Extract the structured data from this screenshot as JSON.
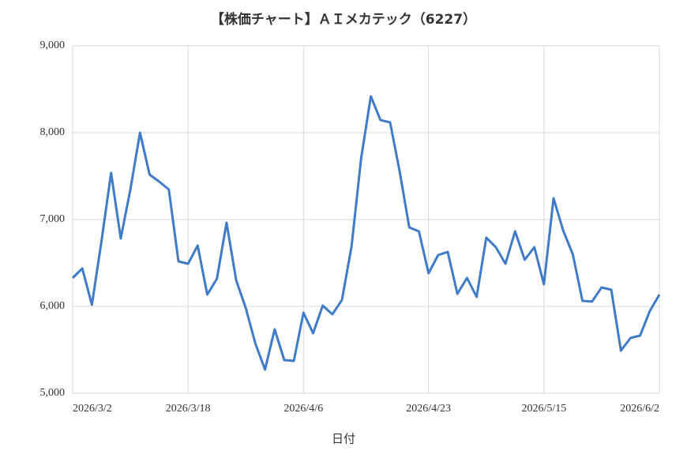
{
  "chart_data": {
    "type": "line",
    "title": "【株価チャート】ＡＩメカテック（6227）",
    "x_label": "日付",
    "categories": [
      "2026/3/2",
      null,
      null,
      null,
      null,
      null,
      null,
      null,
      null,
      null,
      null,
      null,
      "2026/3/18",
      null,
      null,
      null,
      null,
      null,
      null,
      null,
      null,
      null,
      null,
      null,
      "2026/4/6",
      null,
      null,
      null,
      null,
      null,
      null,
      null,
      null,
      null,
      null,
      null,
      null,
      "2026/4/23",
      null,
      null,
      null,
      null,
      null,
      null,
      null,
      null,
      null,
      null,
      null,
      "2026/5/15",
      null,
      null,
      null,
      null,
      null,
      null,
      null,
      null,
      null,
      null,
      null,
      "2026/6/2"
    ],
    "values": [
      6327,
      6436,
      6018,
      6750,
      7536,
      6782,
      7345,
      8000,
      7518,
      7436,
      7345,
      6518,
      6491,
      6700,
      6136,
      6318,
      6964,
      6300,
      5982,
      5573,
      5273,
      5736,
      5382,
      5373,
      5927,
      5691,
      6009,
      5909,
      6073,
      6691,
      7709,
      8418,
      8145,
      8118,
      7555,
      6909,
      6864,
      6382,
      6591,
      6627,
      6145,
      6327,
      6109,
      6791,
      6682,
      6491,
      6864,
      6536,
      6682,
      6255,
      7245,
      6873,
      6600,
      6064,
      6055,
      6218,
      6191,
      5491,
      5636,
      5664,
      5945,
      6136
    ],
    "color": "#3f7bc9",
    "ylim": [
      5000,
      9000
    ],
    "yticks": [
      {
        "value": 5000,
        "label": "5,000"
      },
      {
        "value": 6000,
        "label": "6,000"
      },
      {
        "value": 7000,
        "label": "7,000"
      },
      {
        "value": 8000,
        "label": "8,000"
      },
      {
        "value": 9000,
        "label": "9,000"
      }
    ],
    "grid": true
  }
}
